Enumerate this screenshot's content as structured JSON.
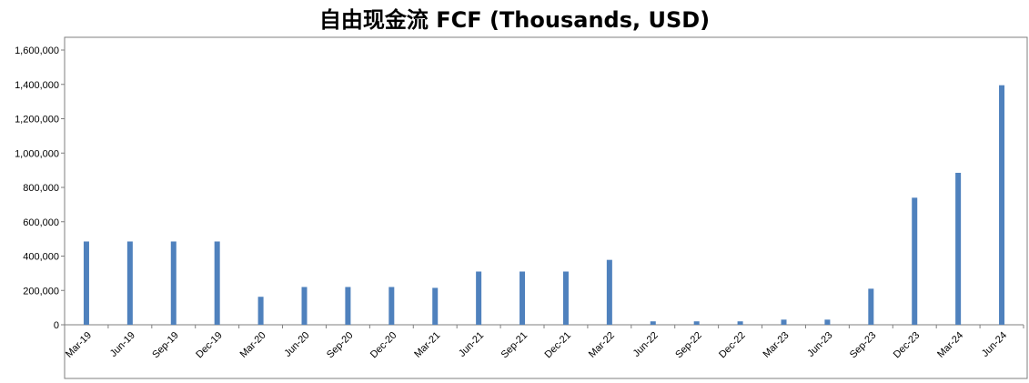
{
  "chart_data": {
    "type": "bar",
    "title": "自由现金流 FCF (Thousands, USD)",
    "xlabel": "",
    "ylabel": "",
    "ylim": [
      0,
      1600000
    ],
    "yticks": [
      "0",
      "200,000",
      "400,000",
      "600,000",
      "800,000",
      "1,000,000",
      "1,200,000",
      "1,400,000",
      "1,600,000"
    ],
    "grid": false,
    "legend": "none",
    "bar_color": "#4F81BD",
    "categories": [
      "Mar-19",
      "Jun-19",
      "Sep-19",
      "Dec-19",
      "Mar-20",
      "Jun-20",
      "Sep-20",
      "Dec-20",
      "Mar-21",
      "Jun-21",
      "Sep-21",
      "Dec-21",
      "Mar-22",
      "Jun-22",
      "Sep-22",
      "Dec-22",
      "Mar-23",
      "Jun-23",
      "Sep-23",
      "Dec-23",
      "Mar-24",
      "Jun-24"
    ],
    "values": [
      485000,
      485000,
      485000,
      485000,
      163000,
      220000,
      220000,
      220000,
      215000,
      310000,
      310000,
      310000,
      378000,
      20000,
      20000,
      20000,
      30000,
      30000,
      210000,
      740000,
      885000,
      1395000
    ]
  }
}
